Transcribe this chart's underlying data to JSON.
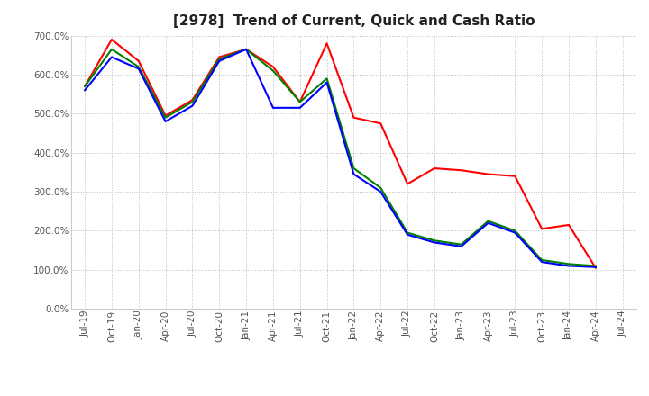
{
  "title": "[2978]  Trend of Current, Quick and Cash Ratio",
  "x_labels": [
    "Jul-19",
    "Oct-19",
    "Jan-20",
    "Apr-20",
    "Jul-20",
    "Oct-20",
    "Jan-21",
    "Apr-21",
    "Jul-21",
    "Oct-21",
    "Jan-22",
    "Apr-22",
    "Jul-22",
    "Oct-22",
    "Jan-23",
    "Apr-23",
    "Jul-23",
    "Oct-23",
    "Jan-24",
    "Apr-24",
    "Jul-24"
  ],
  "current_ratio": [
    570,
    690,
    635,
    495,
    535,
    645,
    665,
    620,
    530,
    680,
    490,
    475,
    320,
    360,
    355,
    345,
    340,
    205,
    215,
    105,
    null
  ],
  "quick_ratio": [
    570,
    665,
    620,
    490,
    530,
    640,
    665,
    610,
    530,
    590,
    360,
    310,
    195,
    175,
    165,
    225,
    200,
    125,
    115,
    110,
    null
  ],
  "cash_ratio": [
    560,
    645,
    615,
    480,
    520,
    635,
    665,
    515,
    515,
    580,
    345,
    300,
    190,
    170,
    160,
    220,
    195,
    120,
    110,
    107,
    null
  ],
  "current_color": "#FF0000",
  "quick_color": "#008000",
  "cash_color": "#0000FF",
  "ylim": [
    0,
    700
  ],
  "yticks": [
    0,
    100,
    200,
    300,
    400,
    500,
    600,
    700
  ],
  "background_color": "#ffffff",
  "grid_color": "#bbbbbb",
  "line_width": 1.5,
  "title_fontsize": 11,
  "tick_fontsize": 7.5,
  "legend_fontsize": 8.5
}
